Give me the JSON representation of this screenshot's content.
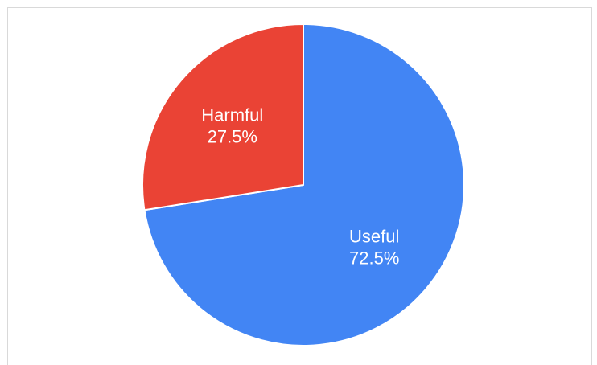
{
  "chart_data": {
    "type": "pie",
    "title": "",
    "slices": [
      {
        "label": "Useful",
        "value": 72.5,
        "display": "72.5%",
        "color": "#4285f4"
      },
      {
        "label": "Harmful",
        "value": 27.5,
        "display": "27.5%",
        "color": "#ea4335"
      }
    ],
    "start_angle_deg": 0,
    "direction": "clockwise",
    "slice_border_color": "#ffffff",
    "legend": "none"
  }
}
